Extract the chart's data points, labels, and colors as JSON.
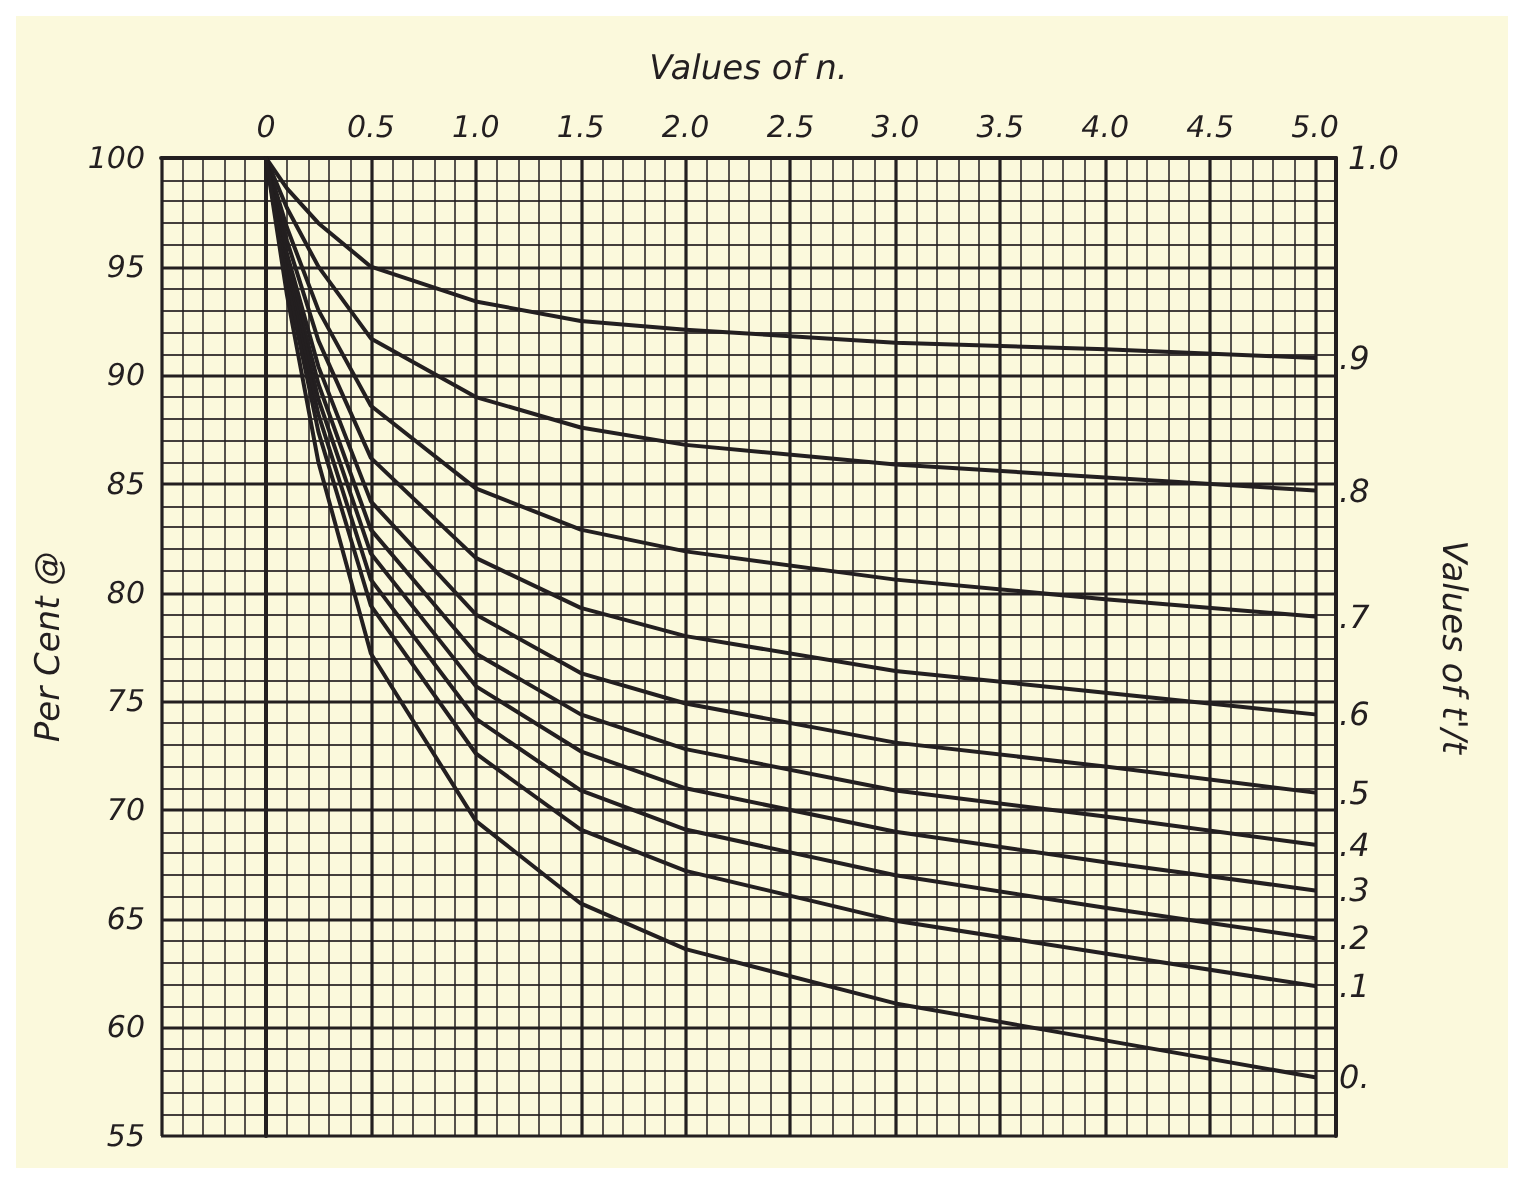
{
  "chart_data": {
    "type": "line",
    "xlabel": "Values of n.",
    "ylabel": "Per Cent @",
    "y2label": "Values of t'/t",
    "xlim": [
      -0.5,
      5.1
    ],
    "ylim": [
      55,
      100
    ],
    "xticks": [
      0,
      0.5,
      {
        "value": 1,
        "label": "1.0"
      },
      1.5,
      {
        "value": 2,
        "label": "2.0"
      },
      2.5,
      {
        "value": 3,
        "label": "3.0"
      },
      3.5,
      {
        "value": 4,
        "label": "4.0"
      },
      4.5,
      {
        "value": 5,
        "label": "5.0"
      }
    ],
    "yticks": [
      55,
      60,
      65,
      70,
      75,
      80,
      85,
      90,
      95,
      100
    ],
    "annotations": [
      "1.0"
    ],
    "grid": true,
    "legend": false,
    "marker": "none",
    "line_style": "solid",
    "x": [
      0,
      0.1,
      0.25,
      0.5,
      1,
      1.5,
      2,
      3,
      4,
      5
    ],
    "series": [
      {
        "name": ".9",
        "color": "#231f20",
        "values": [
          100,
          98.6,
          97.0,
          95.0,
          93.4,
          92.5,
          92.1,
          91.5,
          91.2,
          90.8
        ]
      },
      {
        "name": ".8",
        "color": "#231f20",
        "values": [
          100,
          97.7,
          95.0,
          91.7,
          89.0,
          87.6,
          86.8,
          85.9,
          85.3,
          84.7
        ]
      },
      {
        "name": ".7",
        "color": "#231f20",
        "values": [
          100,
          96.8,
          93.0,
          88.6,
          84.8,
          82.9,
          81.9,
          80.6,
          79.7,
          78.9
        ]
      },
      {
        "name": ".6",
        "color": "#231f20",
        "values": [
          100,
          96.2,
          91.6,
          86.2,
          81.6,
          79.3,
          78.0,
          76.4,
          75.4,
          74.4
        ]
      },
      {
        "name": ".5",
        "color": "#231f20",
        "values": [
          100,
          95.6,
          90.4,
          84.2,
          79.0,
          76.3,
          74.9,
          73.1,
          72.0,
          70.8
        ]
      },
      {
        "name": ".4",
        "color": "#231f20",
        "values": [
          100,
          95.3,
          89.6,
          82.9,
          77.2,
          74.4,
          72.8,
          70.9,
          69.7,
          68.4
        ]
      },
      {
        "name": ".3",
        "color": "#231f20",
        "values": [
          100,
          94.9,
          88.9,
          81.8,
          75.7,
          72.7,
          71.0,
          69.0,
          67.6,
          66.3
        ]
      },
      {
        "name": ".2",
        "color": "#231f20",
        "values": [
          100,
          94.6,
          88.2,
          80.6,
          74.2,
          70.9,
          69.1,
          67.0,
          65.5,
          64.1
        ]
      },
      {
        "name": ".1",
        "color": "#231f20",
        "values": [
          100,
          94.3,
          87.4,
          79.4,
          72.6,
          69.1,
          67.2,
          64.9,
          63.4,
          61.9
        ]
      },
      {
        "name": "0.",
        "color": "#231f20",
        "values": [
          100,
          93.7,
          86.0,
          77.2,
          69.5,
          65.7,
          63.6,
          61.1,
          59.4,
          57.7
        ]
      }
    ]
  }
}
